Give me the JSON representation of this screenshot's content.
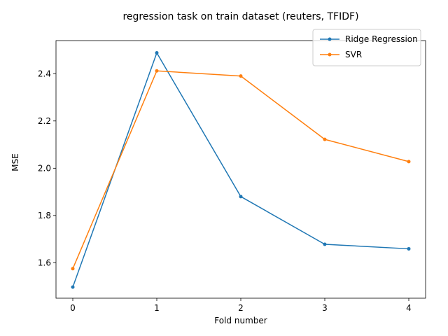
{
  "chart_data": {
    "type": "line",
    "title": "regression task on train dataset (reuters, TFIDF)",
    "xlabel": "Fold number",
    "ylabel": "MSE",
    "x": [
      0,
      1,
      2,
      3,
      4
    ],
    "xticks": [
      "0",
      "1",
      "2",
      "3",
      "4"
    ],
    "yticks": [
      "1.6",
      "1.8",
      "2.0",
      "2.2",
      "2.4"
    ],
    "xlim": [
      -0.2,
      4.2
    ],
    "ylim": [
      1.45,
      2.54
    ],
    "grid": false,
    "legend_position": "top-right",
    "series": [
      {
        "name": "Ridge Regression",
        "color": "#1f77b4",
        "values": [
          1.497,
          2.488,
          1.88,
          1.678,
          1.659
        ]
      },
      {
        "name": "SVR",
        "color": "#ff7f0e",
        "values": [
          1.575,
          2.412,
          2.39,
          2.122,
          2.028
        ]
      }
    ]
  }
}
